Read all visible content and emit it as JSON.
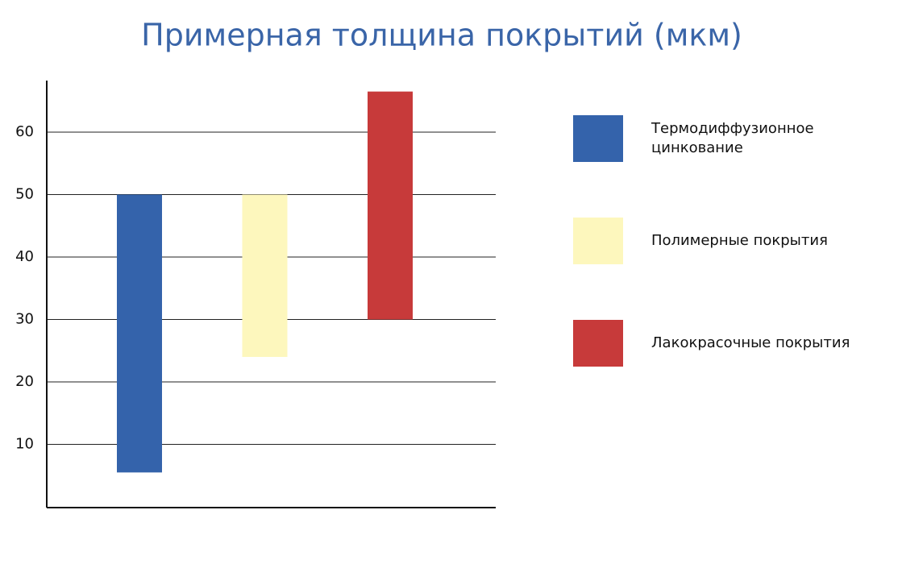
{
  "chart_data": {
    "type": "floating-bar",
    "title": "Примерная толщина покрытий (мкм)",
    "series": [
      {
        "name": "Термодиффузионное цинкование",
        "color": "#3463ab",
        "values": [
          5.5,
          50
        ]
      },
      {
        "name": "Полимерные покрытия",
        "color": "#fdf7bd",
        "values": [
          24,
          50
        ]
      },
      {
        "name": "Лакокрасочные покрытия",
        "color": "#c73a3a",
        "values": [
          30,
          66.5
        ]
      }
    ],
    "ylim": [
      0,
      68
    ],
    "yticks": [
      10,
      20,
      30,
      40,
      50,
      60
    ],
    "grid": true,
    "legend": "right"
  }
}
